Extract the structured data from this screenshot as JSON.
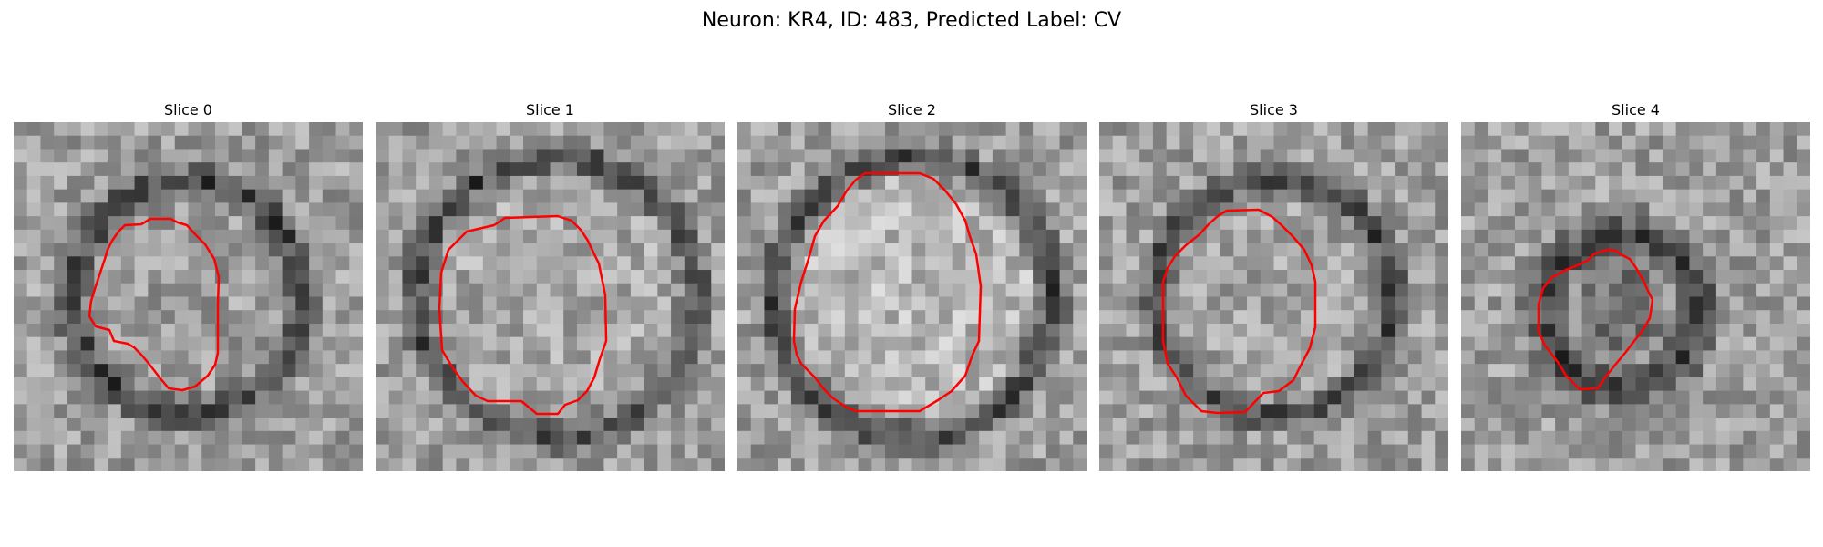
{
  "figure": {
    "title": "Neuron: KR4, ID: 483, Predicted Label: CV"
  },
  "panels": [
    {
      "title": "Slice 0"
    },
    {
      "title": "Slice 1"
    },
    {
      "title": "Slice 2"
    },
    {
      "title": "Slice 3"
    },
    {
      "title": "Slice 4"
    }
  ],
  "colors": {
    "contour": "#ff0000",
    "background": "#ffffff"
  },
  "image_note_colormap": "gray"
}
